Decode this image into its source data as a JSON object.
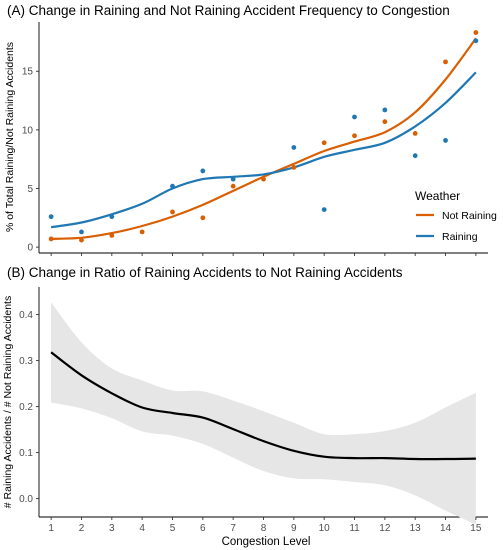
{
  "chart_data": [
    {
      "type": "scatter",
      "title": "(A) Change in Raining and Not Raining Accident Frequency to Congestion",
      "xlabel": "",
      "ylabel": "% of Total Raining/Not Raining Accidents",
      "xlim": [
        0.6,
        15.4
      ],
      "ylim": [
        -0.5,
        19.2
      ],
      "yticks": [
        "0",
        "5",
        "10",
        "15"
      ],
      "legend": {
        "title": "Weather",
        "placement": "right"
      },
      "series": [
        {
          "name": "Not Raining",
          "color": "#d95f02",
          "points": {
            "x": [
              1,
              2,
              3,
              4,
              5,
              6,
              7,
              8,
              9,
              10,
              11,
              12,
              13,
              14,
              15
            ],
            "y": [
              0.7,
              0.6,
              1.0,
              1.3,
              3.0,
              2.5,
              5.2,
              5.8,
              6.8,
              8.9,
              9.5,
              10.7,
              9.7,
              15.8,
              18.3
            ]
          },
          "smooth": {
            "x": [
              1,
              2,
              3,
              4,
              5,
              6,
              7,
              8,
              9,
              10,
              11,
              12,
              13,
              14,
              15
            ],
            "y": [
              0.7,
              0.8,
              1.2,
              1.8,
              2.6,
              3.6,
              4.8,
              6.0,
              7.1,
              8.2,
              9.0,
              9.8,
              11.5,
              14.3,
              17.8
            ]
          }
        },
        {
          "name": "Raining",
          "color": "#1f78b4",
          "points": {
            "x": [
              1,
              2,
              3,
              4,
              5,
              6,
              7,
              8,
              9,
              10,
              11,
              12,
              13,
              14,
              15
            ],
            "y": [
              2.6,
              1.3,
              2.6,
              null,
              5.2,
              6.5,
              5.8,
              null,
              8.5,
              3.2,
              11.1,
              11.7,
              7.8,
              9.1,
              17.6
            ]
          },
          "smooth": {
            "x": [
              1,
              2,
              3,
              4,
              5,
              6,
              7,
              8,
              9,
              10,
              11,
              12,
              13,
              14,
              15
            ],
            "y": [
              1.7,
              2.1,
              2.8,
              3.7,
              5.0,
              5.8,
              6.0,
              6.2,
              6.8,
              7.7,
              8.3,
              8.9,
              10.3,
              12.3,
              14.9
            ]
          }
        }
      ]
    },
    {
      "type": "line",
      "title": "(B) Change in Ratio of Raining Accidents to Not Raining Accidents",
      "xlabel": "Congestion Level",
      "ylabel": "# Raining Accidents / # Not Raining Accidents",
      "xlim": [
        0.6,
        15.4
      ],
      "ylim": [
        -0.04,
        0.46
      ],
      "xticks": [
        "1",
        "2",
        "3",
        "4",
        "5",
        "6",
        "7",
        "8",
        "9",
        "10",
        "11",
        "12",
        "13",
        "14",
        "15"
      ],
      "yticks": [
        "0.0",
        "0.1",
        "0.2",
        "0.3",
        "0.4"
      ],
      "series": [
        {
          "name": "",
          "color": "#000000",
          "x": [
            1,
            2,
            3,
            4,
            5,
            6,
            7,
            8,
            9,
            10,
            11,
            12,
            13,
            14,
            15
          ],
          "y": [
            0.318,
            0.268,
            0.229,
            0.198,
            0.186,
            0.176,
            0.151,
            0.125,
            0.104,
            0.091,
            0.088,
            0.088,
            0.086,
            0.086,
            0.087
          ],
          "ci_upper": [
            0.427,
            0.34,
            0.283,
            0.257,
            0.235,
            0.233,
            0.213,
            0.19,
            0.165,
            0.14,
            0.14,
            0.147,
            0.165,
            0.198,
            0.23
          ],
          "ci_lower": [
            0.209,
            0.196,
            0.175,
            0.146,
            0.137,
            0.119,
            0.089,
            0.06,
            0.044,
            0.042,
            0.036,
            0.029,
            0.007,
            -0.026,
            -0.056
          ]
        }
      ]
    }
  ]
}
